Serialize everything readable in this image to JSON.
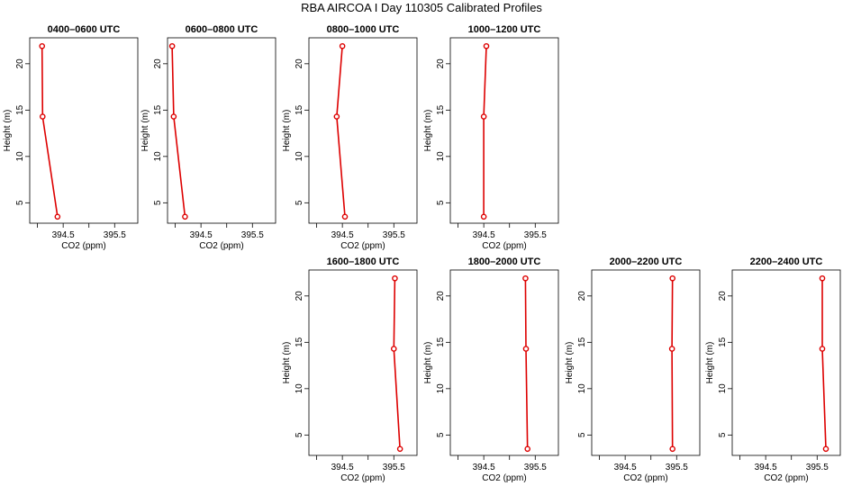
{
  "title": "RBA AIRCOA I  Day 110305  Calibrated Profiles",
  "series_color": "#dd0000",
  "chart_data": [
    {
      "type": "line",
      "title": "0400–0600 UTC",
      "xlabel": "CO2 (ppm)",
      "ylabel": "Height (m)",
      "xlim": [
        393.85,
        395.95
      ],
      "ylim": [
        2.8,
        22.8
      ],
      "x_ticks": [
        394.0,
        394.5,
        395.0,
        395.5
      ],
      "x_tick_labels": [
        "",
        "394.5",
        "",
        "395.5"
      ],
      "y_ticks": [
        5,
        10,
        15,
        20
      ],
      "y_tick_labels": [
        "5",
        "10",
        "15",
        "20"
      ],
      "points": [
        {
          "x": 394.39,
          "y": 3.5
        },
        {
          "x": 394.1,
          "y": 14.3
        },
        {
          "x": 394.09,
          "y": 21.9
        }
      ]
    },
    {
      "type": "line",
      "title": "0600–0800 UTC",
      "xlabel": "CO2 (ppm)",
      "ylabel": "Height (m)",
      "xlim": [
        393.85,
        395.95
      ],
      "ylim": [
        2.8,
        22.8
      ],
      "x_ticks": [
        394.0,
        394.5,
        395.0,
        395.5
      ],
      "x_tick_labels": [
        "",
        "394.5",
        "",
        "395.5"
      ],
      "y_ticks": [
        5,
        10,
        15,
        20
      ],
      "y_tick_labels": [
        "5",
        "10",
        "15",
        "20"
      ],
      "points": [
        {
          "x": 394.19,
          "y": 3.5
        },
        {
          "x": 393.97,
          "y": 14.3
        },
        {
          "x": 393.94,
          "y": 21.9
        }
      ]
    },
    {
      "type": "line",
      "title": "0800–1000 UTC",
      "xlabel": "CO2 (ppm)",
      "ylabel": "Height (m)",
      "xlim": [
        393.85,
        395.95
      ],
      "ylim": [
        2.8,
        22.8
      ],
      "x_ticks": [
        394.0,
        394.5,
        395.0,
        395.5
      ],
      "x_tick_labels": [
        "",
        "394.5",
        "",
        "395.5"
      ],
      "y_ticks": [
        5,
        10,
        15,
        20
      ],
      "y_tick_labels": [
        "5",
        "10",
        "15",
        "20"
      ],
      "points": [
        {
          "x": 394.55,
          "y": 3.5
        },
        {
          "x": 394.39,
          "y": 14.3
        },
        {
          "x": 394.5,
          "y": 21.9
        }
      ]
    },
    {
      "type": "line",
      "title": "1000–1200 UTC",
      "xlabel": "CO2 (ppm)",
      "ylabel": "Height (m)",
      "xlim": [
        393.85,
        395.95
      ],
      "ylim": [
        2.8,
        22.8
      ],
      "x_ticks": [
        394.0,
        394.5,
        395.0,
        395.5
      ],
      "x_tick_labels": [
        "",
        "394.5",
        "",
        "395.5"
      ],
      "y_ticks": [
        5,
        10,
        15,
        20
      ],
      "y_tick_labels": [
        "5",
        "10",
        "15",
        "20"
      ],
      "points": [
        {
          "x": 394.5,
          "y": 3.5
        },
        {
          "x": 394.5,
          "y": 14.3
        },
        {
          "x": 394.55,
          "y": 21.9
        }
      ]
    },
    {
      "type": "line",
      "title": "1600–1800 UTC",
      "xlabel": "CO2 (ppm)",
      "ylabel": "Height (m)",
      "xlim": [
        393.85,
        395.95
      ],
      "ylim": [
        2.8,
        22.8
      ],
      "x_ticks": [
        394.0,
        394.5,
        395.0,
        395.5
      ],
      "x_tick_labels": [
        "",
        "394.5",
        "",
        "395.5"
      ],
      "y_ticks": [
        5,
        10,
        15,
        20
      ],
      "y_tick_labels": [
        "5",
        "10",
        "15",
        "20"
      ],
      "points": [
        {
          "x": 395.62,
          "y": 3.5
        },
        {
          "x": 395.5,
          "y": 14.3
        },
        {
          "x": 395.52,
          "y": 21.9
        }
      ]
    },
    {
      "type": "line",
      "title": "1800–2000 UTC",
      "xlabel": "CO2 (ppm)",
      "ylabel": "Height (m)",
      "xlim": [
        393.85,
        395.95
      ],
      "ylim": [
        2.8,
        22.8
      ],
      "x_ticks": [
        394.0,
        394.5,
        395.0,
        395.5
      ],
      "x_tick_labels": [
        "",
        "394.5",
        "",
        "395.5"
      ],
      "y_ticks": [
        5,
        10,
        15,
        20
      ],
      "y_tick_labels": [
        "5",
        "10",
        "15",
        "20"
      ],
      "points": [
        {
          "x": 395.35,
          "y": 3.5
        },
        {
          "x": 395.32,
          "y": 14.3
        },
        {
          "x": 395.31,
          "y": 21.9
        }
      ]
    },
    {
      "type": "line",
      "title": "2000–2200 UTC",
      "xlabel": "CO2 (ppm)",
      "ylabel": "Height (m)",
      "xlim": [
        393.85,
        395.95
      ],
      "ylim": [
        2.8,
        22.8
      ],
      "x_ticks": [
        394.0,
        394.5,
        395.0,
        395.5
      ],
      "x_tick_labels": [
        "",
        "394.5",
        "",
        "395.5"
      ],
      "y_ticks": [
        5,
        10,
        15,
        20
      ],
      "y_tick_labels": [
        "5",
        "10",
        "15",
        "20"
      ],
      "points": [
        {
          "x": 395.42,
          "y": 3.5
        },
        {
          "x": 395.41,
          "y": 14.3
        },
        {
          "x": 395.42,
          "y": 21.9
        }
      ]
    },
    {
      "type": "line",
      "title": "2200–2400 UTC",
      "xlabel": "CO2 (ppm)",
      "ylabel": "Height (m)",
      "xlim": [
        393.85,
        395.95
      ],
      "ylim": [
        2.8,
        22.8
      ],
      "x_ticks": [
        394.0,
        394.5,
        395.0,
        395.5
      ],
      "x_tick_labels": [
        "",
        "394.5",
        "",
        "395.5"
      ],
      "y_ticks": [
        5,
        10,
        15,
        20
      ],
      "y_tick_labels": [
        "5",
        "10",
        "15",
        "20"
      ],
      "points": [
        {
          "x": 395.67,
          "y": 3.5
        },
        {
          "x": 395.6,
          "y": 14.3
        },
        {
          "x": 395.6,
          "y": 21.9
        }
      ]
    }
  ]
}
